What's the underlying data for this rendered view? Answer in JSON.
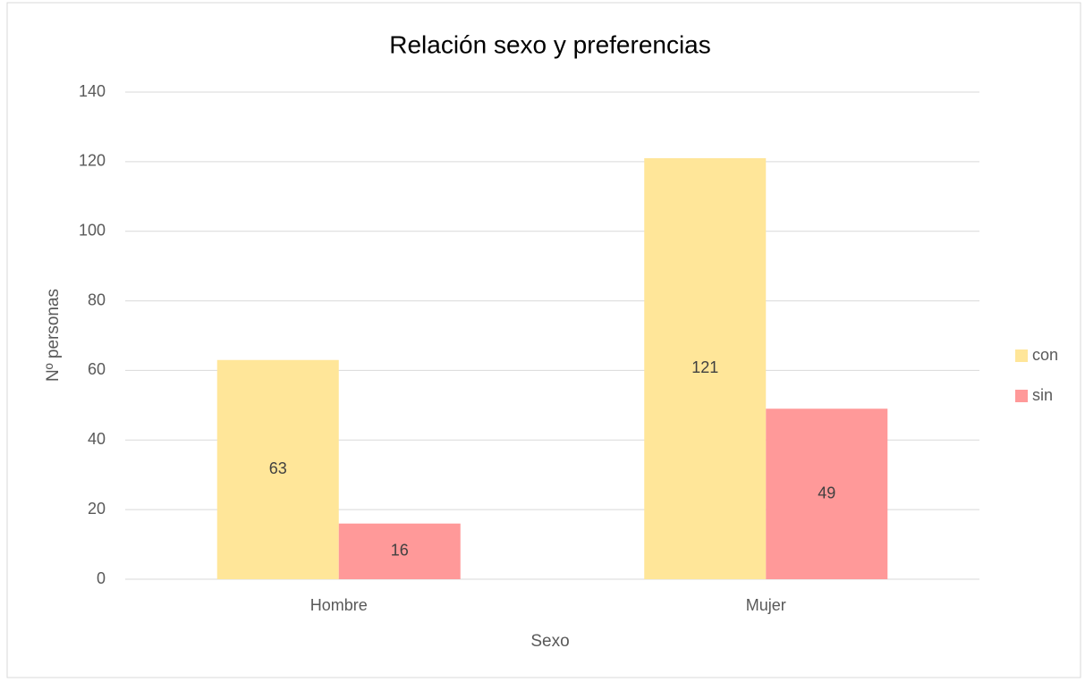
{
  "chart_data": {
    "type": "bar",
    "title": "Relación sexo y preferencias",
    "x_label": "Sexo",
    "y_label": "Nº personas",
    "categories": [
      "Hombre",
      "Mujer"
    ],
    "series": [
      {
        "name": "con",
        "color": "#ffe699",
        "values": [
          63,
          121
        ]
      },
      {
        "name": "sin",
        "color": "#ff9999",
        "values": [
          16,
          49
        ]
      }
    ],
    "ylim": [
      0,
      140
    ],
    "yticks": [
      0,
      20,
      40,
      60,
      80,
      100,
      120,
      140
    ],
    "grid": true,
    "legend": "right"
  }
}
